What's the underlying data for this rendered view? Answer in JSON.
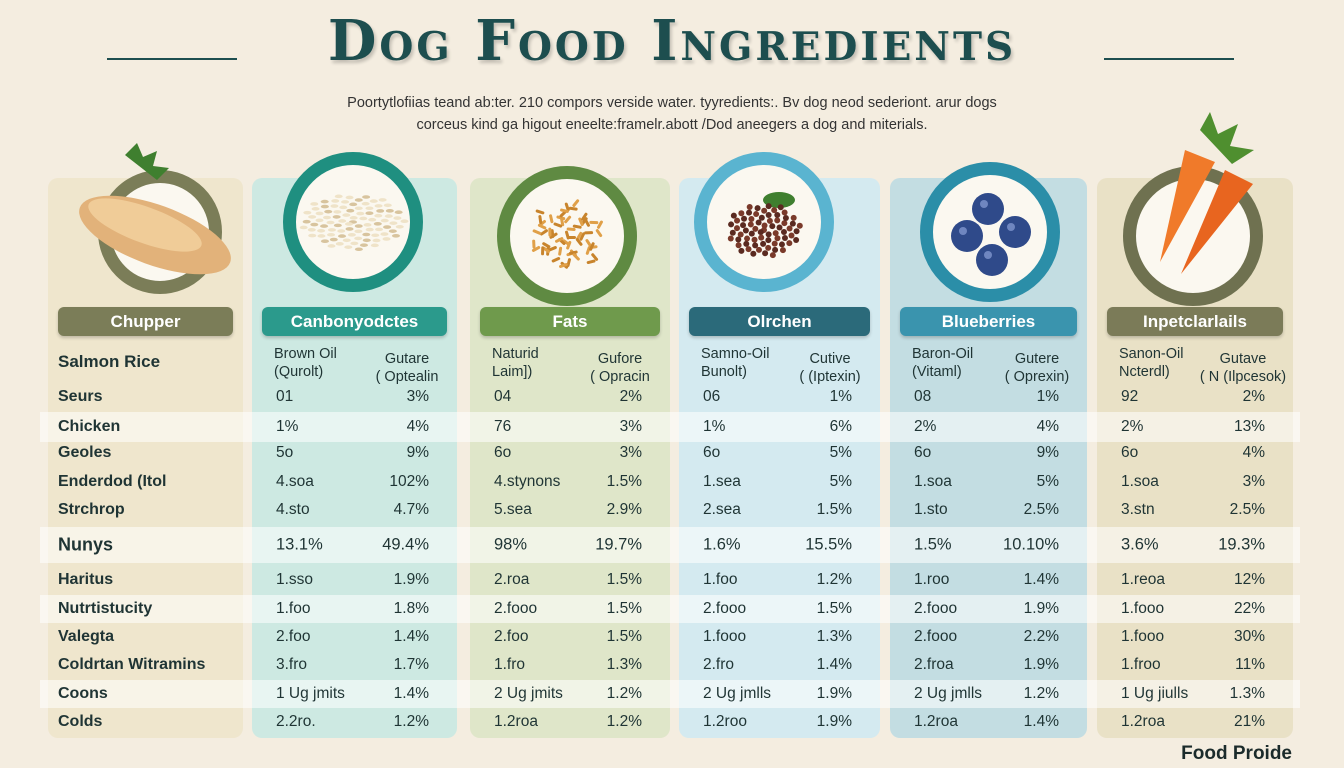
{
  "header": {
    "title": "Dog Food Ingredients",
    "subtitle_line1": "Poortytlofiias teand ab:ter. 210 compors verside water. tyyredients:. Bv dog neod sederiont. arur dogs",
    "subtitle_line2": "corceus kind ga higout eneelte:framelr.abott /Dod aneegers a dog and miterials."
  },
  "colors": {
    "title": "#1d4e4f",
    "background": "#f4ede0"
  },
  "row_labels": [
    "Salmon Rice",
    "Seurs",
    "Chicken",
    "Geoles",
    "Enderdod (Itol",
    "Strchrop",
    "Nunys",
    "Haritus",
    "Nutrtistucity",
    "Valegta",
    "Coldrtan Witramins",
    "Coons",
    "Colds"
  ],
  "columns": [
    {
      "label": "Chupper",
      "image": "chicken-breast-icon",
      "color": "#7b7d58"
    },
    {
      "label": "Canbonyodctes",
      "image": "rice-icon",
      "color": "#2b9a8c",
      "header": [
        "Brown Oil",
        "(Qurolt)",
        "Gutare",
        "( Optealin"
      ],
      "values": [
        [
          "01",
          "3%"
        ],
        [
          "1%",
          "4%"
        ],
        [
          "5o",
          "9%"
        ],
        [
          "4.soa",
          "102%"
        ],
        [
          "4.sto",
          "4.7%"
        ],
        [
          "13.1%",
          "49.4%"
        ],
        [
          "1.sso",
          "1.9%"
        ],
        [
          "1.foo",
          "1.8%"
        ],
        [
          "2.foo",
          "1.4%"
        ],
        [
          "3.fro",
          "1.7%"
        ],
        [
          "1 Ug jmits",
          "1.4%"
        ],
        [
          "2.2ro.",
          "1.2%"
        ]
      ]
    },
    {
      "label": "Fats",
      "image": "grains-icon",
      "color": "#6f9a4c",
      "header": [
        "Naturid",
        "Laim])",
        "Gufore",
        "( Opracin"
      ],
      "values": [
        [
          "04",
          "2%"
        ],
        [
          "76",
          "3%"
        ],
        [
          "6o",
          "3%"
        ],
        [
          "4.stynons",
          "1.5%"
        ],
        [
          "5.sea",
          "2.9%"
        ],
        [
          "98%",
          "19.7%"
        ],
        [
          "2.roa",
          "1.5%"
        ],
        [
          "2.fooo",
          "1.5%"
        ],
        [
          "2.foo",
          "1.5%"
        ],
        [
          "1.fro",
          "1.3%"
        ],
        [
          "2 Ug jmits",
          "1.2%"
        ],
        [
          "1.2roa",
          "1.2%"
        ]
      ]
    },
    {
      "label": "Olrchen",
      "image": "meat-crumbles-icon",
      "color": "#2b6a7a",
      "header": [
        "Samno-Oil",
        "Bunolt)",
        "Cutive",
        "( (Iptexin)"
      ],
      "values": [
        [
          "06",
          "1%"
        ],
        [
          "1%",
          "6%"
        ],
        [
          "6o",
          "5%"
        ],
        [
          "1.sea",
          "5%"
        ],
        [
          "2.sea",
          "1.5%"
        ],
        [
          "1.6%",
          "15.5%"
        ],
        [
          "1.foo",
          "1.2%"
        ],
        [
          "2.fooo",
          "1.5%"
        ],
        [
          "1.fooo",
          "1.3%"
        ],
        [
          "2.fro",
          "1.4%"
        ],
        [
          "2 Ug jmlls",
          "1.9%"
        ],
        [
          "1.2roo",
          "1.9%"
        ]
      ]
    },
    {
      "label": "Blueberries",
      "image": "blueberries-icon",
      "color": "#3a94ae",
      "header": [
        "Baron-Oil",
        "(Vitaml)",
        "Gutere",
        "( Oprexin)"
      ],
      "values": [
        [
          "08",
          "1%"
        ],
        [
          "2%",
          "4%"
        ],
        [
          "6o",
          "9%"
        ],
        [
          "1.soa",
          "5%"
        ],
        [
          "1.sto",
          "2.5%"
        ],
        [
          "1.5%",
          "10.10%"
        ],
        [
          "1.roo",
          "1.4%"
        ],
        [
          "2.fooo",
          "1.9%"
        ],
        [
          "2.fooo",
          "2.2%"
        ],
        [
          "2.froa",
          "1.9%"
        ],
        [
          "2 Ug jmlls",
          "1.2%"
        ],
        [
          "1.2roa",
          "1.4%"
        ]
      ]
    },
    {
      "label": "Inpetclarlails",
      "image": "carrots-icon",
      "color": "#7b7b58",
      "header": [
        "Sanon-Oil",
        "Ncterdl)",
        "Gutave",
        "( N (Ilpcesok)"
      ],
      "values": [
        [
          "92",
          "2%"
        ],
        [
          "2%",
          "13%"
        ],
        [
          "6o",
          "4%"
        ],
        [
          "1.soa",
          "3%"
        ],
        [
          "3.stn",
          "2.5%"
        ],
        [
          "3.6%",
          "19.3%"
        ],
        [
          "1.reoa",
          "12%"
        ],
        [
          "1.fooo",
          "22%"
        ],
        [
          "1.fooo",
          "30%"
        ],
        [
          "1.froo",
          "11%"
        ],
        [
          "1 Ug jiulls",
          "1.3%"
        ],
        [
          "1.2roa",
          "21%"
        ]
      ]
    }
  ],
  "footer": "Food Proide"
}
